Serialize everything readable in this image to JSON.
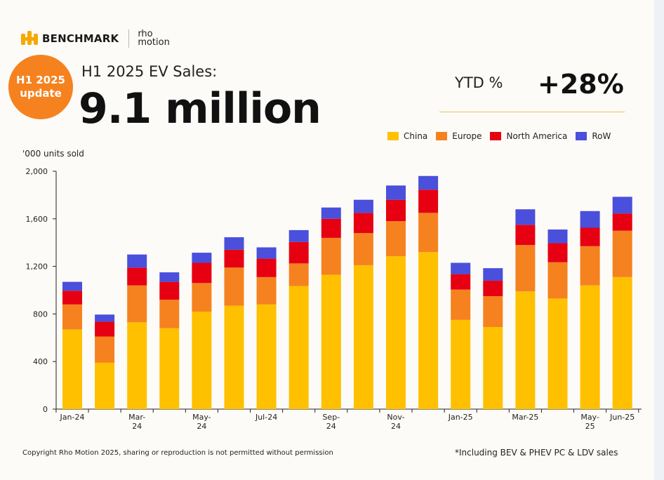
{
  "brand": {
    "logo_text": "BENCHMARK",
    "partner_line1": "rho",
    "partner_line2": "motion"
  },
  "badge": {
    "line1": "H1 2025",
    "line2": "update"
  },
  "header": {
    "subtitle": "H1 2025 EV Sales:",
    "headline": "9.1 million"
  },
  "ytd": {
    "label": "YTD %",
    "value": "+28%"
  },
  "colors": {
    "China": "#ffc000",
    "Europe": "#f5821f",
    "North America": "#e60012",
    "RoW": "#4a4fdc"
  },
  "footer": {
    "copyright": "Copyright Rho Motion 2025, sharing or reproduction is not permitted without permission",
    "footnote": "*Including BEV & PHEV PC & LDV sales"
  },
  "chart_data": {
    "type": "bar",
    "stacked": true,
    "ylabel": "'000 units sold",
    "ylim": [
      0,
      2000
    ],
    "yticks": [
      0,
      400,
      800,
      1200,
      1600,
      2000
    ],
    "ytick_labels": [
      "0",
      "400",
      "800",
      "1,200",
      "1,600",
      "2,000"
    ],
    "grid": false,
    "legend_position": "top-right",
    "categories": [
      "Jan-24",
      "Feb-24",
      "Mar-24",
      "Apr-24",
      "May-24",
      "Jun-24",
      "Jul-24",
      "Aug-24",
      "Sep-24",
      "Oct-24",
      "Nov-24",
      "Dec-24",
      "Jan-25",
      "Feb-25",
      "Mar-25",
      "Apr-25",
      "May-25",
      "Jun-25"
    ],
    "x_tick_labels": [
      [
        "Jan-24"
      ],
      [],
      [
        "Mar-",
        "24"
      ],
      [],
      [
        "May-",
        "24"
      ],
      [],
      [
        "Jul-24"
      ],
      [],
      [
        "Sep-",
        "24"
      ],
      [],
      [
        "Nov-",
        "24"
      ],
      [],
      [
        "Jan-25"
      ],
      [],
      [
        "Mar-25"
      ],
      [],
      [
        "May-",
        "25"
      ],
      [
        "Jun-25"
      ]
    ],
    "series": [
      {
        "name": "China",
        "values": [
          670,
          390,
          730,
          680,
          820,
          870,
          880,
          1035,
          1130,
          1210,
          1285,
          1320,
          750,
          690,
          990,
          930,
          1040,
          1110
        ]
      },
      {
        "name": "Europe",
        "values": [
          210,
          220,
          310,
          240,
          240,
          320,
          230,
          190,
          310,
          270,
          295,
          330,
          255,
          260,
          390,
          305,
          330,
          390
        ]
      },
      {
        "name": "North America",
        "values": [
          115,
          125,
          150,
          150,
          170,
          150,
          155,
          180,
          160,
          170,
          180,
          195,
          130,
          130,
          170,
          160,
          155,
          145
        ]
      },
      {
        "name": "RoW",
        "values": [
          75,
          60,
          110,
          80,
          85,
          105,
          95,
          100,
          95,
          110,
          120,
          115,
          95,
          105,
          130,
          115,
          140,
          140
        ]
      }
    ]
  }
}
